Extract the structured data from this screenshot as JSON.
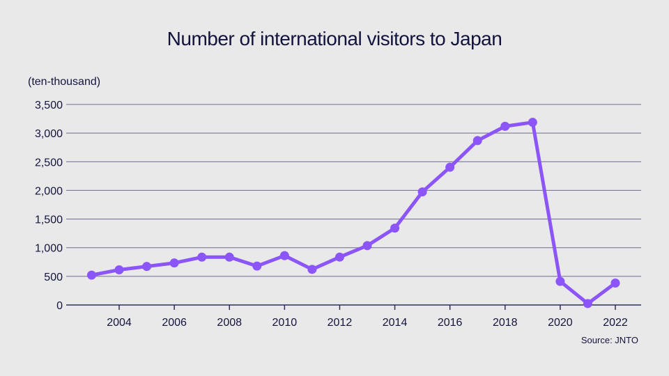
{
  "chart_data": {
    "type": "line",
    "title": "Number of international visitors to Japan",
    "ylabel": "(ten-thousand)",
    "source": "Source: JNTO",
    "x": [
      2003,
      2004,
      2005,
      2006,
      2007,
      2008,
      2009,
      2010,
      2011,
      2012,
      2013,
      2014,
      2015,
      2016,
      2017,
      2018,
      2019,
      2020,
      2021,
      2022
    ],
    "values": [
      521,
      614,
      673,
      733,
      835,
      835,
      679,
      861,
      622,
      836,
      1036,
      1341,
      1974,
      2404,
      2869,
      3119,
      3188,
      412,
      25,
      383
    ],
    "xticks": [
      2004,
      2006,
      2008,
      2010,
      2012,
      2014,
      2016,
      2018,
      2020,
      2022
    ],
    "yticks": [
      0,
      500,
      1000,
      1500,
      2000,
      2500,
      3000,
      3500
    ],
    "ytick_labels": [
      "0",
      "500",
      "1,000",
      "1,500",
      "2,000",
      "2,500",
      "3,000",
      "3,500"
    ],
    "xlim": [
      2001.9,
      2023
    ],
    "ylim": [
      0,
      3500
    ],
    "grid": true,
    "colors": {
      "line": "#8b55f7",
      "grid": "#6e6a8a",
      "axis": "#2e2f5a",
      "background": "#e9e9e9"
    }
  }
}
